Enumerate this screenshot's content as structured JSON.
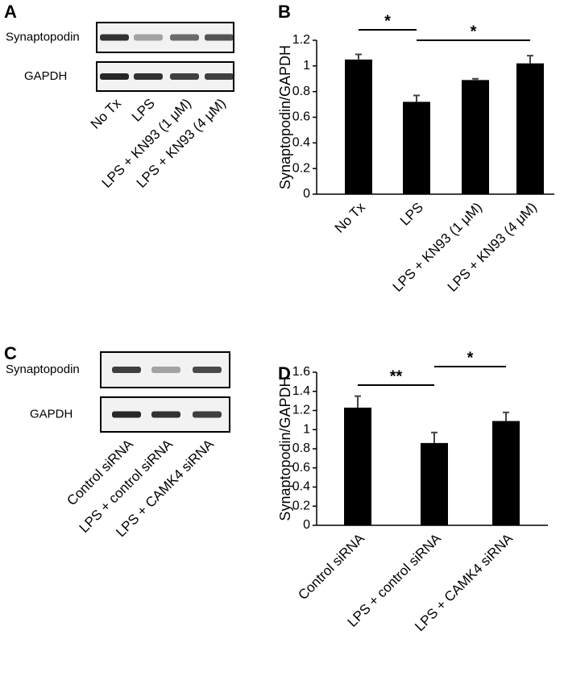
{
  "panels": [
    {
      "label": "A",
      "rows": [
        "Synaptopodin",
        "GAPDH"
      ],
      "lanes": [
        "No Tx",
        "LPS",
        "LPS + KN93 (1 μM)",
        "LPS + KN93 (4 μM)"
      ]
    },
    {
      "label": "C",
      "rows": [
        "Synaptopodin",
        "GAPDH"
      ],
      "lanes": [
        "Control siRNA",
        "LPS + control siRNA",
        "LPS + CAMK4 siRNA"
      ]
    }
  ],
  "chart_data": [
    {
      "type": "bar",
      "panel_label": "B",
      "ylabel": "Synaptopodin/GAPDH",
      "categories": [
        "No Tx",
        "LPS",
        "LPS + KN93 (1 μM)",
        "LPS + KN93 (4 μM)"
      ],
      "values": [
        1.05,
        0.72,
        0.89,
        1.02
      ],
      "errors": [
        0.04,
        0.05,
        0.01,
        0.06
      ],
      "color": "#000000",
      "ylim": [
        0,
        1.2
      ],
      "yticks": [
        0,
        0.2,
        0.4,
        0.6,
        0.8,
        1,
        1.2
      ],
      "annotations": [
        "*",
        "*"
      ]
    },
    {
      "type": "bar",
      "panel_label": "D",
      "ylabel": "Synaptopodin/GAPDH",
      "categories": [
        "Control siRNA",
        "LPS + control siRNA",
        "LPS + CAMK4 siRNA"
      ],
      "values": [
        1.23,
        0.86,
        1.09
      ],
      "errors": [
        0.12,
        0.11,
        0.09
      ],
      "color": "#000000",
      "ylim": [
        0,
        1.6
      ],
      "yticks": [
        0,
        0.2,
        0.4,
        0.6,
        0.8,
        1,
        1.2,
        1.4,
        1.6
      ],
      "annotations": [
        "**",
        "*"
      ]
    }
  ]
}
